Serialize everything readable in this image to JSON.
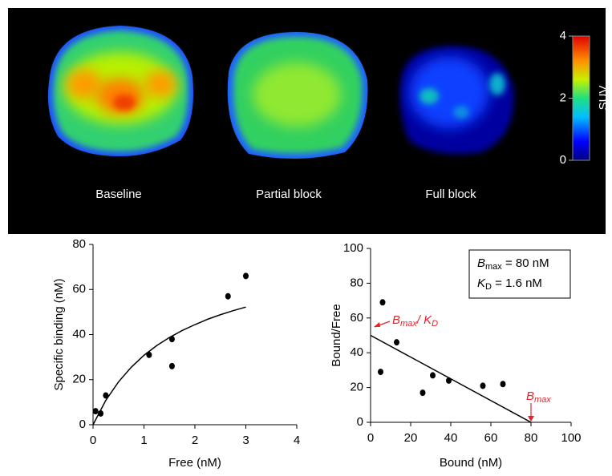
{
  "images": {
    "labels": [
      "Baseline",
      "Partial block",
      "Full block"
    ],
    "colorbar": {
      "label": "SUV",
      "lim": [
        0,
        4
      ],
      "ticks": [
        0,
        2,
        4
      ]
    }
  },
  "chart_data": [
    {
      "type": "scatter",
      "x_label": "Free (nM)",
      "y_label": "Specific binding (nM)",
      "xlim": [
        0,
        4
      ],
      "ylim": [
        0,
        80
      ],
      "xticks": [
        0,
        1,
        2,
        3,
        4
      ],
      "yticks": [
        0,
        20,
        40,
        60,
        80
      ],
      "color": "#000000",
      "points": {
        "x": [
          0.05,
          0.15,
          0.25,
          1.1,
          1.55,
          1.55,
          2.65,
          3.0
        ],
        "values": [
          6,
          5,
          13,
          31,
          38,
          26,
          57,
          66
        ]
      },
      "fit": {
        "x": [
          0,
          0.25,
          0.5,
          0.75,
          1,
          1.25,
          1.5,
          1.75,
          2,
          2.25,
          2.5,
          2.75,
          3
        ],
        "values": [
          0,
          10.8,
          19.0,
          25.5,
          30.8,
          35.1,
          38.7,
          41.8,
          44.4,
          46.8,
          48.8,
          50.6,
          52.2
        ]
      }
    },
    {
      "type": "scatter",
      "x_label": "Bound (nM)",
      "y_label": "Bound/Free",
      "xlim": [
        0,
        100
      ],
      "ylim": [
        0,
        100
      ],
      "xticks": [
        0,
        20,
        40,
        60,
        80,
        100
      ],
      "yticks": [
        0,
        20,
        40,
        60,
        80,
        100
      ],
      "color": "#000000",
      "points": {
        "x": [
          5,
          6,
          13,
          26,
          31,
          39,
          56,
          66
        ],
        "values": [
          29,
          69,
          46,
          17,
          27,
          24,
          21,
          22
        ]
      },
      "fit": {
        "x": [
          0,
          80
        ],
        "values": [
          50,
          0
        ]
      },
      "box_lines": [
        [
          "B",
          "max",
          " = 80 nM"
        ],
        [
          "K",
          "D",
          " = 1.6 nM"
        ]
      ],
      "annotations": [
        {
          "parts": [
            "B",
            "max",
            "/ K",
            "D"
          ],
          "color": "#e8202a"
        },
        {
          "parts": [
            "B",
            "max"
          ],
          "color": "#e8202a"
        }
      ]
    }
  ]
}
